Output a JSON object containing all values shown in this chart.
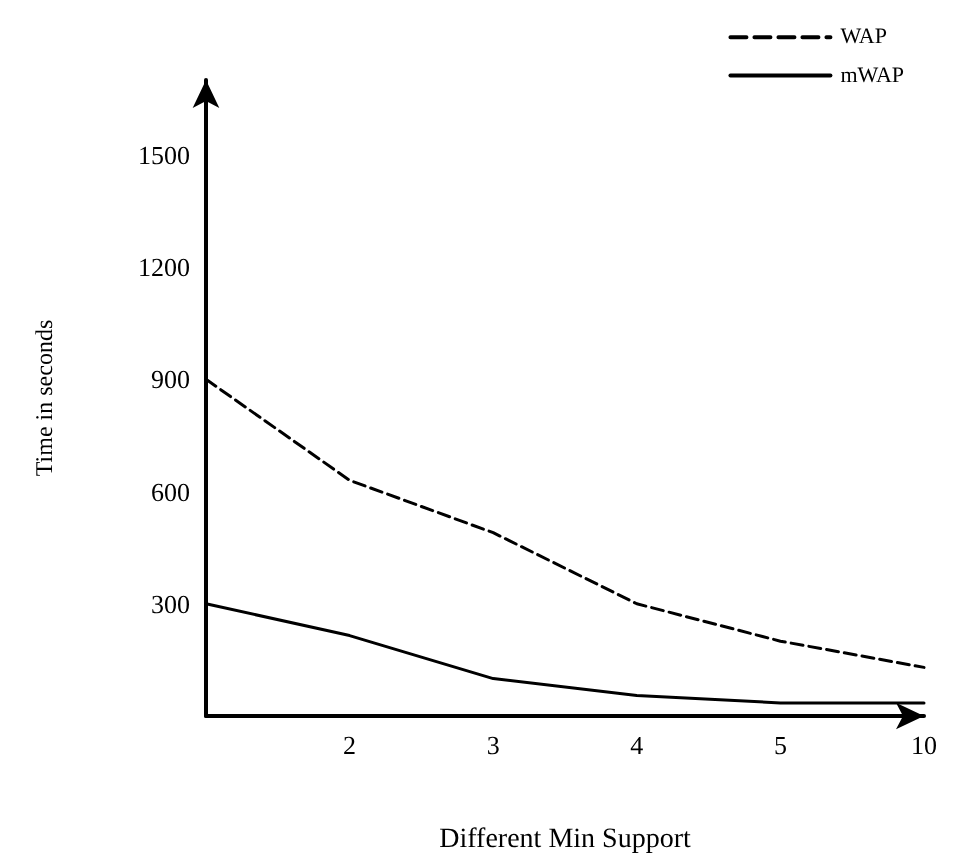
{
  "chart_data": {
    "type": "line",
    "xlabel": "Different Min Support",
    "ylabel": "Time in seconds",
    "categories": [
      null,
      "2",
      "3",
      "4",
      "5",
      "10"
    ],
    "series": [
      {
        "name": "WAP",
        "color": "#000000",
        "line_style": "dashed",
        "values": [
          900,
          630,
          490,
          300,
          200,
          130
        ]
      },
      {
        "name": "mWAP",
        "color": "#000000",
        "line_style": "solid",
        "values": [
          300,
          215,
          100,
          55,
          35,
          35
        ]
      }
    ],
    "ylim": [
      0,
      1700
    ],
    "yticks": [
      300,
      600,
      900,
      1200,
      1500
    ],
    "grid": false,
    "legend": "top right",
    "marker": "none"
  }
}
